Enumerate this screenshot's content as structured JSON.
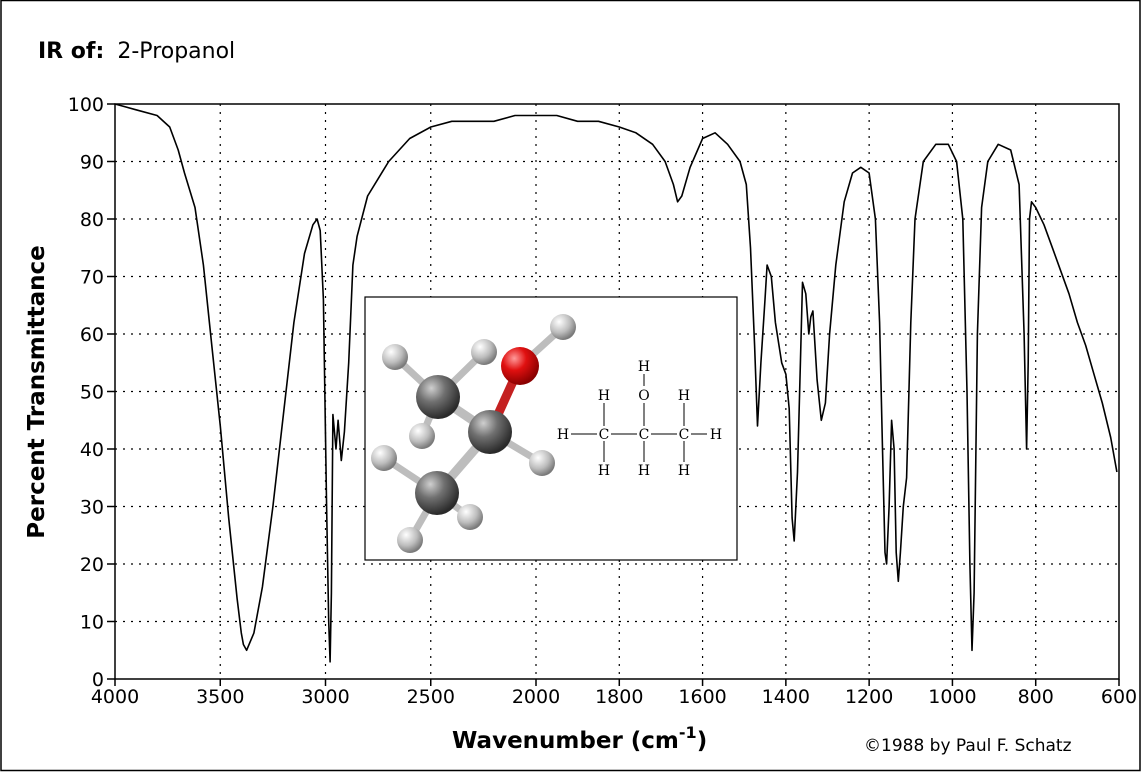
{
  "chart_data": {
    "type": "line",
    "title_prefix": "IR of:",
    "compound": "2-Propanol",
    "xlabel": "Wavenumber (cm",
    "xlabel_sup": "-1",
    "xlabel_end": ")",
    "ylabel": "Percent Transmittance",
    "credit": "©1988 by Paul F. Schatz",
    "ylim": [
      0,
      100
    ],
    "y_ticks": [
      0,
      10,
      20,
      30,
      40,
      50,
      60,
      70,
      80,
      90,
      100
    ],
    "x_axis_note": "axis reversed; linear 4000-2000 and 2000-600 with compressed scale below 2000",
    "x_ticks": [
      4000,
      3500,
      3000,
      2500,
      2000,
      1800,
      1600,
      1400,
      1200,
      1000,
      800,
      600
    ],
    "grid": true,
    "series": [
      {
        "points": [
          [
            4000,
            100
          ],
          [
            3900,
            99
          ],
          [
            3800,
            98
          ],
          [
            3740,
            96
          ],
          [
            3700,
            92
          ],
          [
            3670,
            88
          ],
          [
            3620,
            82
          ],
          [
            3580,
            72
          ],
          [
            3540,
            58
          ],
          [
            3500,
            44
          ],
          [
            3460,
            28
          ],
          [
            3420,
            14
          ],
          [
            3400,
            8
          ],
          [
            3390,
            6
          ],
          [
            3375,
            5
          ],
          [
            3340,
            8
          ],
          [
            3300,
            16
          ],
          [
            3250,
            30
          ],
          [
            3200,
            46
          ],
          [
            3150,
            62
          ],
          [
            3100,
            74
          ],
          [
            3060,
            79
          ],
          [
            3040,
            80
          ],
          [
            3025,
            78
          ],
          [
            3010,
            66
          ],
          [
            2995,
            30
          ],
          [
            2985,
            10
          ],
          [
            2978,
            3
          ],
          [
            2972,
            15
          ],
          [
            2965,
            46
          ],
          [
            2950,
            40
          ],
          [
            2940,
            45
          ],
          [
            2925,
            38
          ],
          [
            2910,
            43
          ],
          [
            2890,
            55
          ],
          [
            2870,
            72
          ],
          [
            2850,
            77
          ],
          [
            2800,
            84
          ],
          [
            2750,
            87
          ],
          [
            2700,
            90
          ],
          [
            2650,
            92
          ],
          [
            2600,
            94
          ],
          [
            2500,
            96
          ],
          [
            2400,
            97
          ],
          [
            2300,
            97
          ],
          [
            2200,
            97
          ],
          [
            2100,
            98
          ],
          [
            2000,
            98
          ],
          [
            1950,
            98
          ],
          [
            1900,
            97
          ],
          [
            1850,
            97
          ],
          [
            1800,
            96
          ],
          [
            1760,
            95
          ],
          [
            1720,
            93
          ],
          [
            1690,
            90
          ],
          [
            1670,
            86
          ],
          [
            1660,
            83
          ],
          [
            1650,
            84
          ],
          [
            1630,
            89
          ],
          [
            1600,
            94
          ],
          [
            1570,
            95
          ],
          [
            1540,
            93
          ],
          [
            1510,
            90
          ],
          [
            1495,
            86
          ],
          [
            1485,
            75
          ],
          [
            1475,
            58
          ],
          [
            1468,
            44
          ],
          [
            1460,
            55
          ],
          [
            1450,
            66
          ],
          [
            1445,
            72
          ],
          [
            1435,
            70
          ],
          [
            1425,
            62
          ],
          [
            1410,
            55
          ],
          [
            1400,
            53
          ],
          [
            1392,
            47
          ],
          [
            1385,
            28
          ],
          [
            1380,
            24
          ],
          [
            1372,
            36
          ],
          [
            1365,
            55
          ],
          [
            1360,
            69
          ],
          [
            1352,
            67
          ],
          [
            1345,
            60
          ],
          [
            1340,
            63
          ],
          [
            1335,
            64
          ],
          [
            1325,
            52
          ],
          [
            1315,
            45
          ],
          [
            1305,
            48
          ],
          [
            1295,
            60
          ],
          [
            1280,
            72
          ],
          [
            1260,
            83
          ],
          [
            1240,
            88
          ],
          [
            1220,
            89
          ],
          [
            1200,
            88
          ],
          [
            1185,
            80
          ],
          [
            1175,
            62
          ],
          [
            1168,
            40
          ],
          [
            1162,
            22
          ],
          [
            1158,
            20
          ],
          [
            1152,
            30
          ],
          [
            1146,
            45
          ],
          [
            1140,
            40
          ],
          [
            1135,
            22
          ],
          [
            1130,
            17
          ],
          [
            1125,
            22
          ],
          [
            1118,
            30
          ],
          [
            1110,
            35
          ],
          [
            1100,
            62
          ],
          [
            1090,
            80
          ],
          [
            1070,
            90
          ],
          [
            1040,
            93
          ],
          [
            1010,
            93
          ],
          [
            990,
            90
          ],
          [
            975,
            80
          ],
          [
            965,
            50
          ],
          [
            958,
            20
          ],
          [
            953,
            5
          ],
          [
            948,
            15
          ],
          [
            940,
            60
          ],
          [
            930,
            82
          ],
          [
            915,
            90
          ],
          [
            890,
            93
          ],
          [
            860,
            92
          ],
          [
            840,
            86
          ],
          [
            828,
            60
          ],
          [
            822,
            40
          ],
          [
            818,
            55
          ],
          [
            815,
            80
          ],
          [
            810,
            83
          ],
          [
            800,
            82
          ],
          [
            780,
            79
          ],
          [
            760,
            75
          ],
          [
            740,
            71
          ],
          [
            720,
            67
          ],
          [
            700,
            62
          ],
          [
            680,
            58
          ],
          [
            660,
            53
          ],
          [
            640,
            48
          ],
          [
            620,
            42
          ],
          [
            605,
            36
          ]
        ]
      }
    ]
  },
  "inset": {
    "structure": {
      "H": "H",
      "O": "O",
      "C": "C"
    }
  }
}
